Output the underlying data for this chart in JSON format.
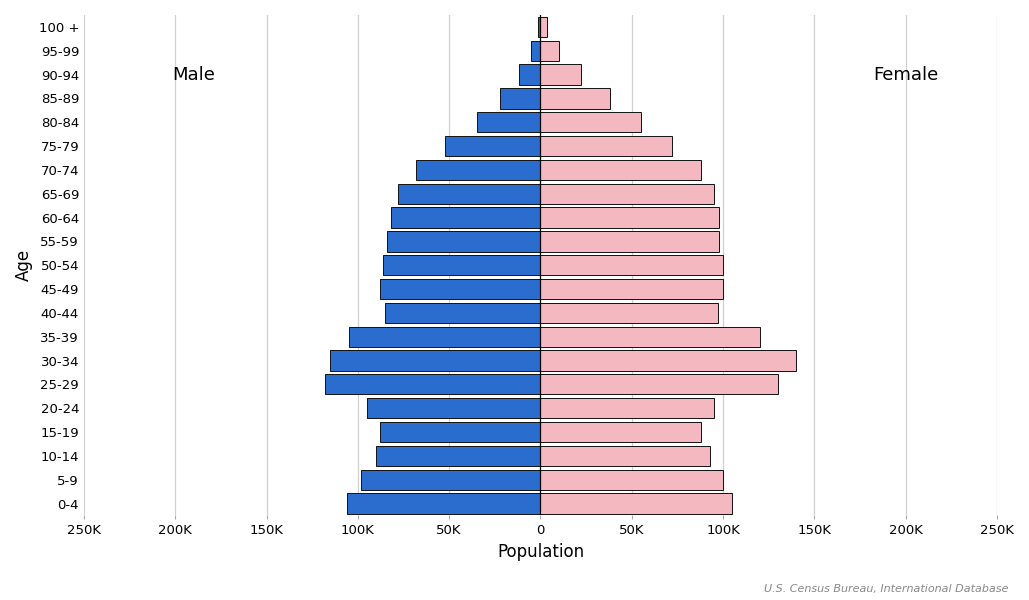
{
  "xlabel": "Population",
  "ylabel": "Age",
  "age_groups": [
    "0-4",
    "5-9",
    "10-14",
    "15-19",
    "20-24",
    "25-29",
    "30-34",
    "35-39",
    "40-44",
    "45-49",
    "50-54",
    "55-59",
    "60-64",
    "65-69",
    "70-74",
    "75-79",
    "80-84",
    "85-89",
    "90-94",
    "95-99",
    "100 +"
  ],
  "male": [
    106000,
    98000,
    90000,
    88000,
    95000,
    118000,
    115000,
    105000,
    85000,
    88000,
    86000,
    84000,
    82000,
    78000,
    68000,
    52000,
    35000,
    22000,
    12000,
    5000,
    1500
  ],
  "female": [
    105000,
    100000,
    93000,
    88000,
    95000,
    130000,
    140000,
    120000,
    97000,
    100000,
    100000,
    98000,
    98000,
    95000,
    88000,
    72000,
    55000,
    38000,
    22000,
    10000,
    3500
  ],
  "male_color": "#2b6dce",
  "female_color": "#f4b8c1",
  "edge_color": "#111111",
  "background_color": "#ffffff",
  "grid_color": "#d0d0d0",
  "male_label": "Male",
  "female_label": "Female",
  "source_text": "U.S. Census Bureau, International Database",
  "xlim": 250000,
  "xtick_values": [
    -250000,
    -200000,
    -150000,
    -100000,
    -50000,
    0,
    50000,
    100000,
    150000,
    200000,
    250000
  ],
  "xtick_labels": [
    "250K",
    "200K",
    "150K",
    "100K",
    "50K",
    "0",
    "50K",
    "100K",
    "150K",
    "200K",
    "250K"
  ]
}
